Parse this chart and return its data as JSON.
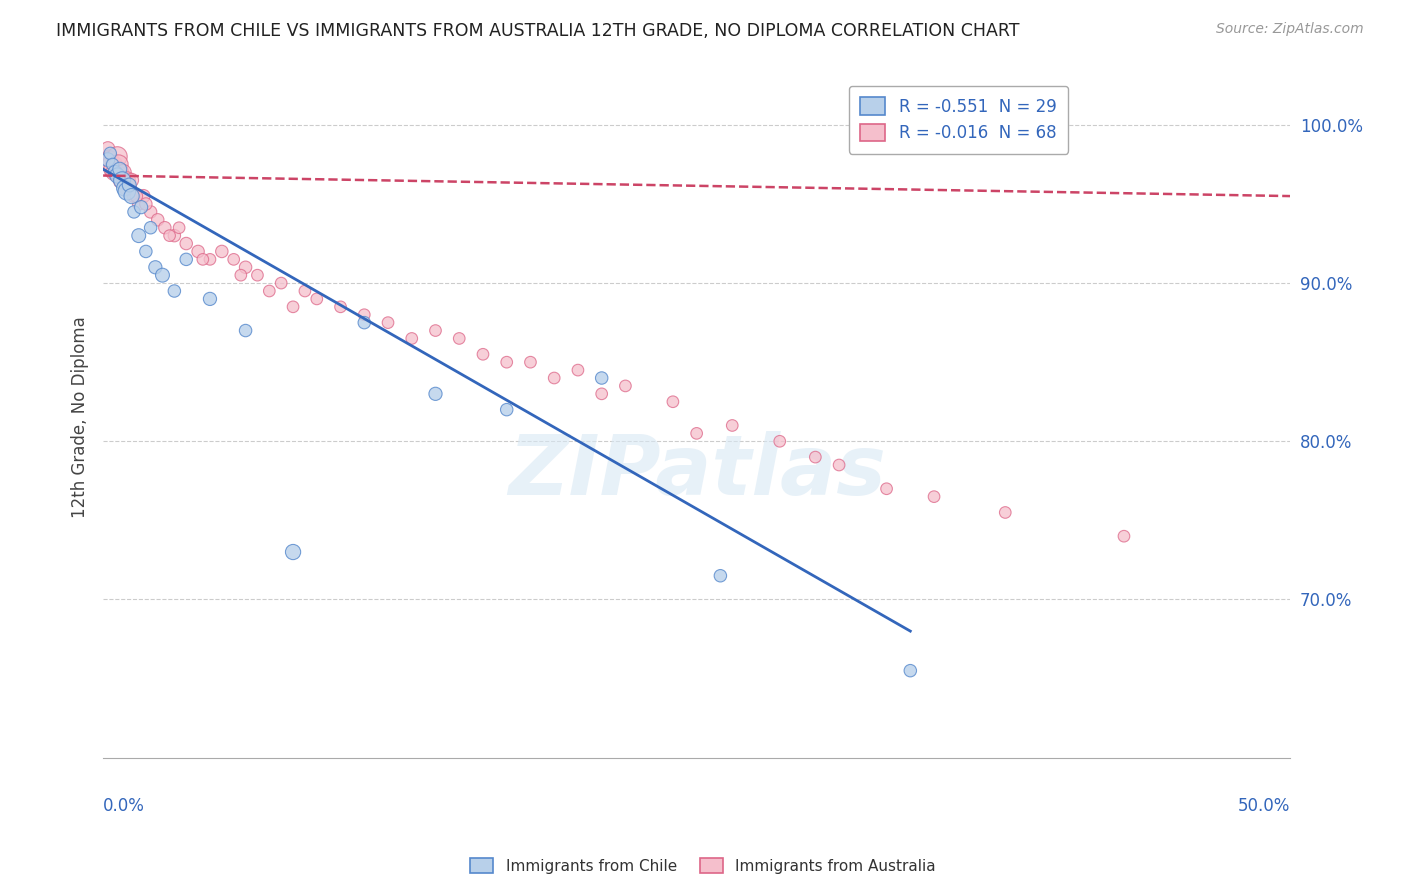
{
  "title": "IMMIGRANTS FROM CHILE VS IMMIGRANTS FROM AUSTRALIA 12TH GRADE, NO DIPLOMA CORRELATION CHART",
  "source": "Source: ZipAtlas.com",
  "ylabel": "12th Grade, No Diploma",
  "xlim": [
    0.0,
    50.0
  ],
  "ylim": [
    60.0,
    103.0
  ],
  "yticks": [
    70.0,
    80.0,
    90.0,
    100.0
  ],
  "ytick_labels": [
    "70.0%",
    "80.0%",
    "90.0%",
    "100.0%"
  ],
  "chile_R": "-0.551",
  "chile_N": "29",
  "australia_R": "-0.016",
  "australia_N": "68",
  "chile_color": "#b8d0ea",
  "chile_edge": "#5588cc",
  "australia_color": "#f5bfcc",
  "australia_edge": "#dd6688",
  "chile_line_color": "#3366bb",
  "australia_line_color": "#cc4466",
  "watermark": "ZIPatlas",
  "chile_line_x0": 0.0,
  "chile_line_y0": 97.2,
  "chile_line_x1": 34.0,
  "chile_line_y1": 68.0,
  "aus_line_x0": 0.0,
  "aus_line_y0": 96.8,
  "aus_line_x1": 50.0,
  "aus_line_y1": 95.5,
  "chile_scatter_x": [
    0.2,
    0.3,
    0.4,
    0.5,
    0.6,
    0.7,
    0.8,
    0.9,
    1.0,
    1.1,
    1.2,
    1.3,
    1.5,
    1.6,
    1.8,
    2.0,
    2.2,
    2.5,
    3.0,
    3.5,
    4.5,
    6.0,
    8.0,
    11.0,
    14.0,
    17.0,
    21.0,
    26.0,
    34.0
  ],
  "chile_scatter_y": [
    97.8,
    98.2,
    97.5,
    97.0,
    96.8,
    97.2,
    96.5,
    96.0,
    95.8,
    96.2,
    95.5,
    94.5,
    93.0,
    94.8,
    92.0,
    93.5,
    91.0,
    90.5,
    89.5,
    91.5,
    89.0,
    87.0,
    73.0,
    87.5,
    83.0,
    82.0,
    84.0,
    71.5,
    65.5
  ],
  "chile_scatter_size": [
    100,
    80,
    80,
    100,
    120,
    100,
    150,
    130,
    160,
    100,
    120,
    80,
    100,
    90,
    80,
    80,
    90,
    100,
    80,
    80,
    90,
    80,
    120,
    80,
    90,
    80,
    80,
    80,
    80
  ],
  "australia_scatter_x": [
    0.15,
    0.2,
    0.25,
    0.3,
    0.35,
    0.4,
    0.45,
    0.5,
    0.55,
    0.6,
    0.65,
    0.7,
    0.75,
    0.8,
    0.85,
    0.9,
    1.0,
    1.1,
    1.2,
    1.3,
    1.5,
    1.7,
    2.0,
    2.3,
    2.6,
    3.0,
    3.5,
    4.0,
    4.5,
    5.0,
    5.5,
    6.0,
    6.5,
    7.5,
    8.5,
    10.0,
    12.0,
    14.0,
    16.0,
    18.0,
    20.0,
    22.0,
    24.0,
    26.5,
    28.5,
    31.0,
    33.0,
    9.0,
    11.0,
    15.0,
    17.0,
    19.0,
    21.0,
    3.2,
    2.8,
    1.8,
    1.4,
    0.95,
    4.2,
    5.8,
    7.0,
    8.0,
    13.0,
    25.0,
    30.0,
    35.0,
    38.0,
    43.0
  ],
  "australia_scatter_y": [
    97.5,
    98.5,
    98.0,
    97.8,
    97.5,
    97.2,
    97.0,
    97.5,
    97.0,
    98.0,
    97.5,
    97.0,
    96.8,
    96.5,
    97.0,
    96.5,
    96.5,
    96.0,
    96.5,
    95.5,
    95.0,
    95.5,
    94.5,
    94.0,
    93.5,
    93.0,
    92.5,
    92.0,
    91.5,
    92.0,
    91.5,
    91.0,
    90.5,
    90.0,
    89.5,
    88.5,
    87.5,
    87.0,
    85.5,
    85.0,
    84.5,
    83.5,
    82.5,
    81.0,
    80.0,
    78.5,
    77.0,
    89.0,
    88.0,
    86.5,
    85.0,
    84.0,
    83.0,
    93.5,
    93.0,
    95.0,
    95.5,
    96.0,
    91.5,
    90.5,
    89.5,
    88.5,
    86.5,
    80.5,
    79.0,
    76.5,
    75.5,
    74.0
  ],
  "australia_scatter_size": [
    80,
    100,
    90,
    150,
    180,
    160,
    130,
    120,
    110,
    200,
    190,
    170,
    140,
    160,
    130,
    120,
    150,
    110,
    100,
    90,
    80,
    90,
    80,
    80,
    80,
    80,
    80,
    80,
    70,
    80,
    70,
    80,
    70,
    70,
    70,
    70,
    70,
    70,
    70,
    70,
    70,
    70,
    70,
    70,
    70,
    70,
    70,
    70,
    70,
    70,
    70,
    70,
    70,
    70,
    70,
    80,
    80,
    90,
    70,
    70,
    70,
    70,
    70,
    70,
    70,
    70,
    70,
    70
  ]
}
